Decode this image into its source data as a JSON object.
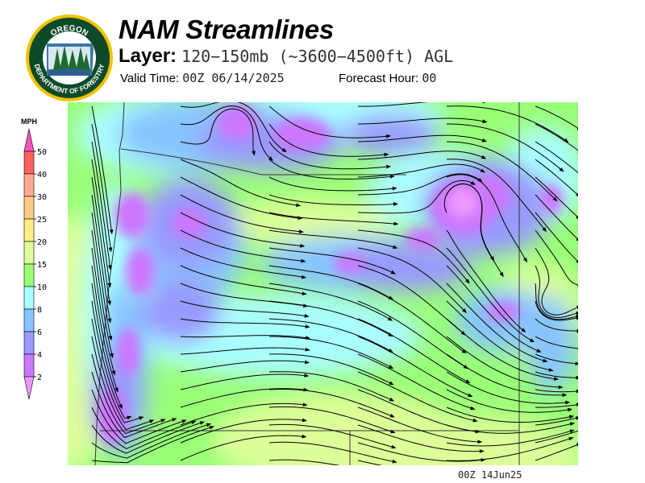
{
  "logo": {
    "top_text": "OREGON",
    "bottom_text": "DEPARTMENT OF FORESTRY"
  },
  "header": {
    "title": "NAM Streamlines",
    "layer_label": "Layer:",
    "layer_value": "120−150mb (~3600−4500ft) AGL",
    "valid_label": "Valid Time:",
    "valid_value": "00Z 06/14/2025",
    "forecast_label": "Forecast Hour:",
    "forecast_value": "00"
  },
  "colorbar": {
    "units": "MPH",
    "ticks": [
      "50",
      "40",
      "30",
      "25",
      "20",
      "15",
      "10",
      "8",
      "6",
      "4",
      "2"
    ],
    "colors": {
      "over": "#ff55bb",
      "40-50": "#ff6060",
      "30-40": "#ffaa99",
      "25-30": "#ffcc88",
      "20-25": "#ffee88",
      "15-20": "#ddff99",
      "10-15": "#99ff77",
      "8-10": "#aaffff",
      "6-8": "#88c4ff",
      "4-6": "#9999ff",
      "2-4": "#cc77ff",
      "under": "#ee99ff"
    }
  },
  "map": {
    "region": "Pacific Northwest",
    "field": "wind speed with streamlines"
  },
  "footer": {
    "stamp": "00Z 14Jun25"
  }
}
